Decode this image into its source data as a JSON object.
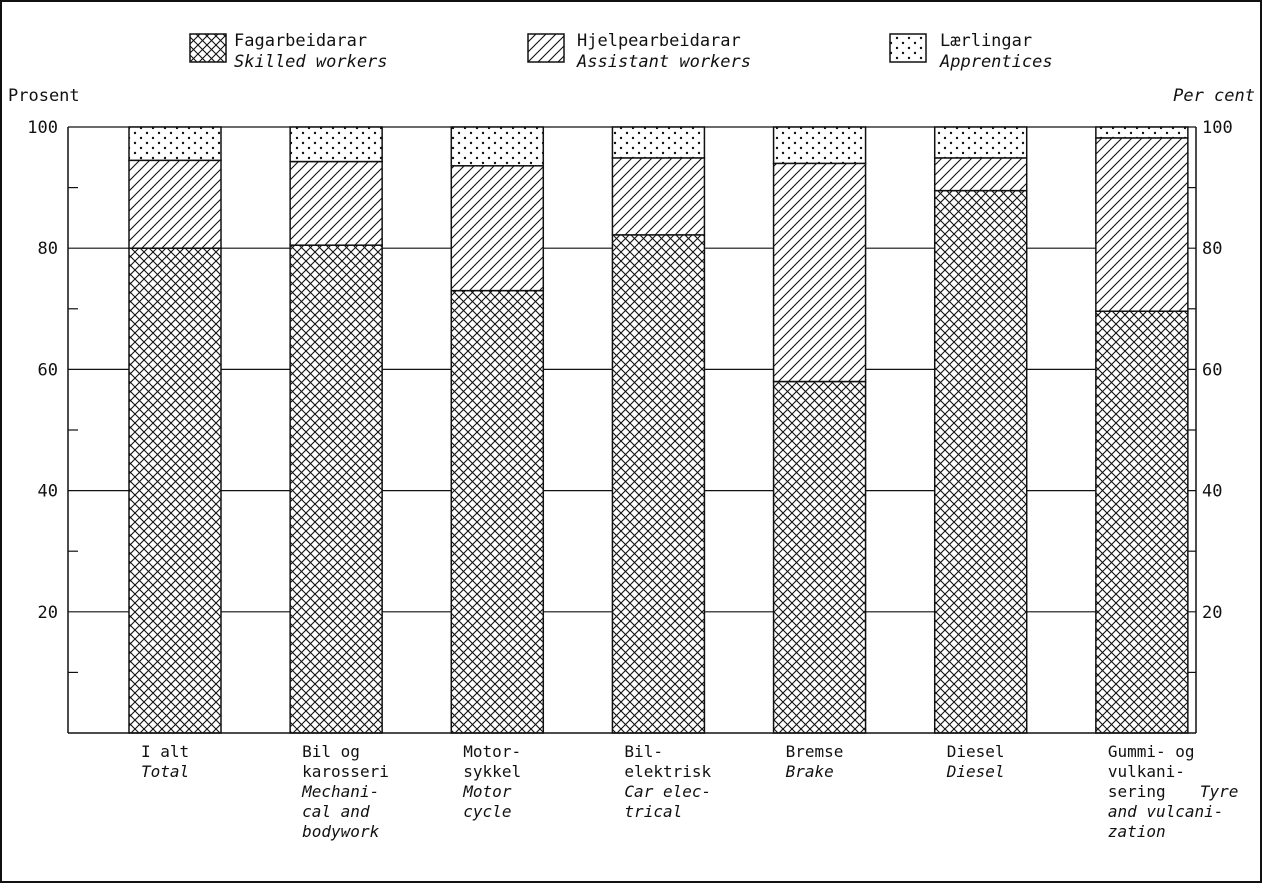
{
  "chart_data": {
    "type": "bar",
    "stacked": true,
    "ylim": [
      0,
      100
    ],
    "yticks": [
      20,
      40,
      60,
      80,
      100
    ],
    "ylabel_left": "Prosent",
    "ylabel_right": "Per cent",
    "grid": true,
    "legend_position": "top",
    "categories": [
      {
        "no": [
          "I alt"
        ],
        "en": [
          "Total"
        ]
      },
      {
        "no": [
          "Bil og",
          "karosseri"
        ],
        "en": [
          "Mechani-",
          "cal and",
          "bodywork"
        ]
      },
      {
        "no": [
          "Motor-",
          "sykkel"
        ],
        "en": [
          "Motor",
          "cycle"
        ]
      },
      {
        "no": [
          "Bil-",
          "elektrisk"
        ],
        "en": [
          "Car elec-",
          "trical"
        ]
      },
      {
        "no": [
          "Bremse"
        ],
        "en": [
          "Brake"
        ]
      },
      {
        "no": [
          "Diesel"
        ],
        "en": [
          "Diesel"
        ]
      },
      {
        "no": [
          "Gummi- og",
          "vulkani-",
          "sering"
        ],
        "en": [
          "Tyre",
          "and vulcani-",
          "zation"
        ],
        "inline_en_on_line": 2
      }
    ],
    "series": [
      {
        "name_no": "Fagarbeidarar",
        "name_en": "Skilled workers",
        "pattern": "crosshatch",
        "values": [
          80,
          80.5,
          73,
          82.2,
          58,
          89.5,
          69.6
        ]
      },
      {
        "name_no": "Hjelpearbeidarar",
        "name_en": "Assistant workers",
        "pattern": "diagonal",
        "values": [
          14.5,
          13.8,
          20.6,
          12.7,
          36,
          5.4,
          28.6
        ]
      },
      {
        "name_no": "Lærlingar",
        "name_en": "Apprentices",
        "pattern": "dots",
        "values": [
          5.5,
          5.7,
          6.4,
          5.1,
          6,
          5.1,
          1.8
        ]
      }
    ]
  }
}
